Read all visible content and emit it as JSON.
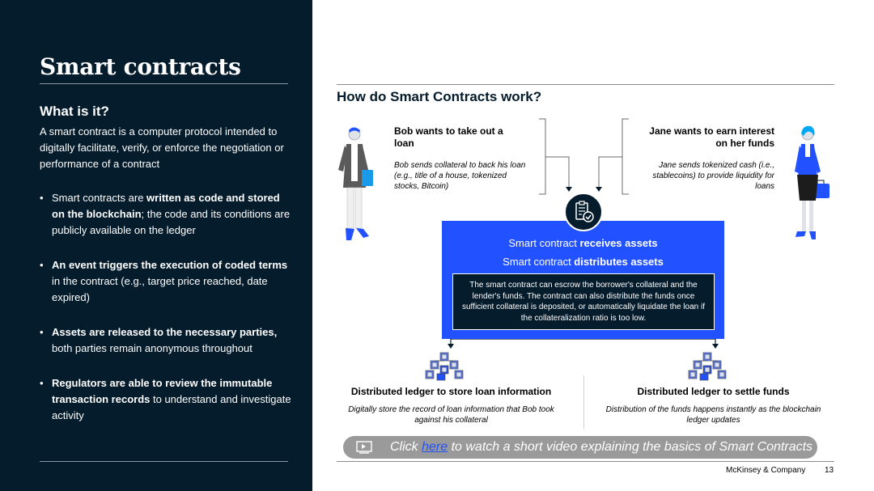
{
  "left": {
    "title": "Smart contracts",
    "subtitle": "What is it?",
    "intro": "A smart contract is a computer protocol intended to digitally facilitate, verify, or enforce the negotiation or performance of a contract",
    "bullets": [
      {
        "bold": "written as code and stored on the blockchain",
        "pre": "Smart contracts are ",
        "post": "; the code and its conditions are publicly available on the ledger"
      },
      {
        "bold": "An event triggers the execution of coded terms",
        "pre": "",
        "post": " in the contract (e.g., target price reached, date expired)"
      },
      {
        "bold": "Assets are released to the necessary parties,",
        "pre": "",
        "post": " both parties remain anonymous throughout"
      },
      {
        "bold": "Regulators are able to review the immutable transaction records",
        "pre": "",
        "post": " to understand and investigate activity"
      }
    ]
  },
  "diagram": {
    "title": "How do Smart Contracts work?",
    "bob": {
      "heading": "Bob wants to take out a loan",
      "description": "Bob sends collateral to back his loan (e.g., title of a house, tokenized stocks, Bitcoin)"
    },
    "jane": {
      "heading": "Jane wants to earn interest on her funds",
      "description": "Jane sends tokenized cash (i.e., stablecoins) to provide liquidity for loans"
    },
    "contract": {
      "receives_pre": "Smart contract ",
      "receives_bold": "receives assets",
      "distributes_pre": "Smart contract ",
      "distributes_bold": "distributes assets",
      "detail": "The smart contract can escrow the borrower's collateral and the lender's funds. The contract can also distribute the funds once sufficient collateral is deposited, or automatically liquidate the loan if the collateralization ratio is too low."
    },
    "ledger_left": {
      "heading": "Distributed ledger to store loan information",
      "description": "Digitally store the record of loan information that Bob took against his collateral"
    },
    "ledger_right": {
      "heading": "Distributed ledger to settle funds",
      "description": "Distribution of the funds happens instantly as the blockchain ledger updates"
    },
    "video": {
      "pre": "Click ",
      "link": "here",
      "post": " to watch a short video explaining the basics of Smart Contracts"
    }
  },
  "footer": {
    "brand": "McKinsey & Company",
    "page": "13"
  },
  "colors": {
    "navy": "#051c2c",
    "electric_blue": "#2251ff",
    "cyan": "#00a9f4",
    "grey_bar": "#9a9a9a"
  },
  "icons": [
    "person-bob-icon",
    "person-jane-icon",
    "contract-check-icon",
    "blockchain-cubes-icon",
    "video-play-icon"
  ]
}
